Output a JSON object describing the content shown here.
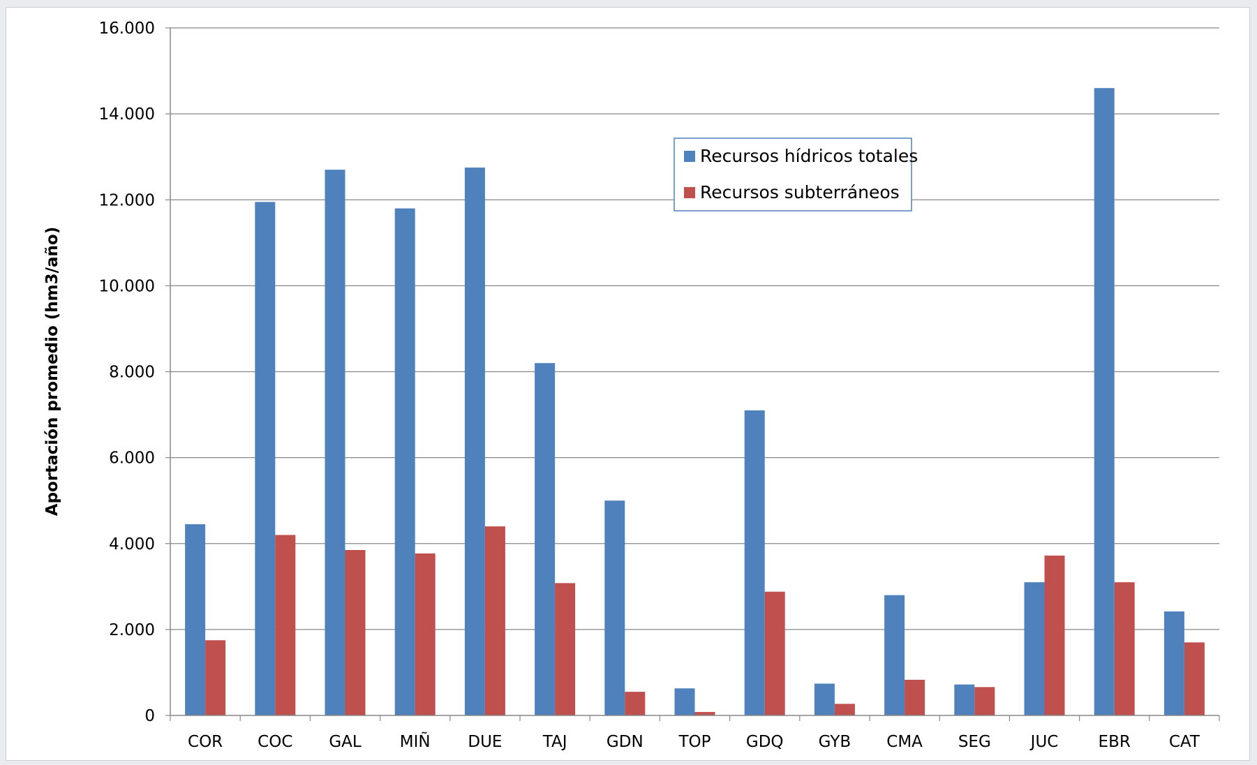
{
  "chart_data": {
    "type": "bar",
    "title": "",
    "xlabel": "",
    "ylabel": "Aportación promedio (hm3/año)",
    "ylim": [
      0,
      16000
    ],
    "y_ticks": [
      0,
      2000,
      4000,
      6000,
      8000,
      10000,
      12000,
      14000,
      16000
    ],
    "y_tick_labels": [
      "0",
      "2.000",
      "4.000",
      "6.000",
      "8.000",
      "10.000",
      "12.000",
      "14.000",
      "16.000"
    ],
    "grid": true,
    "legend_position": "top-center",
    "categories": [
      "COR",
      "COC",
      "GAL",
      "MIÑ",
      "DUE",
      "TAJ",
      "GDN",
      "TOP",
      "GDQ",
      "GYB",
      "CMA",
      "SEG",
      "JUC",
      "EBR",
      "CAT"
    ],
    "series": [
      {
        "name": "Recursos hídricos totales",
        "color": "#4f81bd",
        "values": [
          4450,
          11950,
          12700,
          11800,
          12750,
          8200,
          5000,
          630,
          7100,
          740,
          2800,
          720,
          3100,
          14600,
          2420
        ]
      },
      {
        "name": "Recursos subterráneos",
        "color": "#c0504d",
        "values": [
          1750,
          4200,
          3850,
          3770,
          4400,
          3080,
          550,
          80,
          2880,
          270,
          830,
          660,
          3720,
          3100,
          1700
        ]
      }
    ]
  }
}
